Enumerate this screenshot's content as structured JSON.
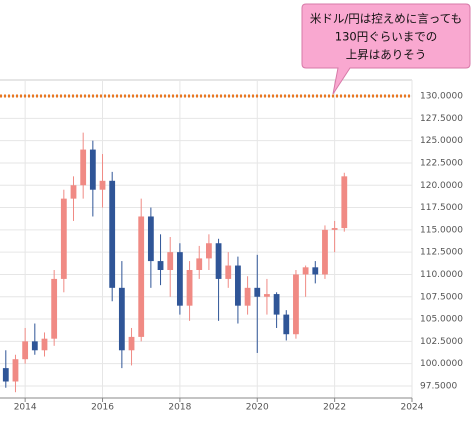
{
  "chart_data": {
    "type": "candlestick",
    "annotation": [
      "米ドル/円は控えめに言っても",
      "130円ぐらいまでの",
      "上昇はありそう"
    ],
    "reference_line": {
      "value": 130,
      "color": "#e87722"
    },
    "up_color": "#f08a84",
    "down_color": "#2f5597",
    "x": [
      2013.5,
      2013.75,
      2014,
      2014.25,
      2014.5,
      2014.75,
      2015,
      2015.25,
      2015.5,
      2015.75,
      2016,
      2016.25,
      2016.5,
      2016.75,
      2017,
      2017.25,
      2017.5,
      2017.75,
      2018,
      2018.25,
      2018.5,
      2018.75,
      2019,
      2019.25,
      2019.5,
      2019.75,
      2020,
      2020.25,
      2020.5,
      2020.75,
      2021,
      2021.25,
      2021.5,
      2021.75,
      2022,
      2022.25
    ],
    "open": [
      99.5,
      98.0,
      100.5,
      102.5,
      101.5,
      102.8,
      109.5,
      118.5,
      120,
      124,
      119.5,
      120.5,
      108.5,
      101.5,
      103,
      116.5,
      111.5,
      110.5,
      112.5,
      106.5,
      110.5,
      111.8,
      113.5,
      109.5,
      111,
      106.5,
      108.5,
      107.5,
      107.8,
      105.5,
      103.3,
      110,
      110.8,
      110,
      115,
      115.2
    ],
    "high": [
      101.5,
      101,
      104,
      104.5,
      103.5,
      110.5,
      119.5,
      121,
      125.9,
      125,
      123.5,
      121.5,
      111.5,
      104,
      118.5,
      117.5,
      114.5,
      114.2,
      113.5,
      111.5,
      113.2,
      114.5,
      114,
      112.5,
      112,
      109.8,
      112.2,
      109.5,
      108,
      106,
      110.5,
      111,
      111.5,
      115.5,
      116,
      121.4
    ],
    "low": [
      97.3,
      96.8,
      100,
      101,
      100.8,
      102,
      108,
      116,
      118.5,
      116.5,
      117.5,
      107,
      99.5,
      99.8,
      102.5,
      108.5,
      108.8,
      107.5,
      105.5,
      104.8,
      109.5,
      110.5,
      104.8,
      108.5,
      104.5,
      105.5,
      101.2,
      105.5,
      104,
      102.6,
      102.8,
      107.5,
      109,
      109.5,
      112.5,
      114.8
    ],
    "close": [
      98.0,
      100.5,
      102.5,
      101.5,
      102.8,
      109.5,
      118.5,
      120,
      124,
      119.5,
      120.5,
      108.5,
      101.5,
      103,
      116.5,
      111.5,
      110.5,
      112.5,
      106.5,
      110.5,
      111.8,
      113.5,
      109.5,
      111,
      106.5,
      108.5,
      107.5,
      107.8,
      105.5,
      103.3,
      110,
      110.8,
      110,
      115,
      115.2,
      121
    ],
    "xlim": [
      2013.35,
      2024
    ],
    "xticks": [
      2014,
      2016,
      2018,
      2020,
      2022,
      2024
    ],
    "ylim": [
      96.15,
      131.8
    ],
    "yticks": [
      {
        "value": 97.5,
        "label": "97.5000"
      },
      {
        "value": 100,
        "label": "100.0000"
      },
      {
        "value": 102.5,
        "label": "102.5000"
      },
      {
        "value": 105,
        "label": "105.0000"
      },
      {
        "value": 107.5,
        "label": "107.5000"
      },
      {
        "value": 110,
        "label": "110.0000"
      },
      {
        "value": 112.5,
        "label": "112.5000"
      },
      {
        "value": 115,
        "label": "115.0000"
      },
      {
        "value": 117.5,
        "label": "117.5000"
      },
      {
        "value": 120,
        "label": "120.0000"
      },
      {
        "value": 122.5,
        "label": "122.5000"
      },
      {
        "value": 125,
        "label": "125.0000"
      },
      {
        "value": 127.5,
        "label": "127.5000"
      },
      {
        "value": 130,
        "label": "130.0000"
      }
    ],
    "grid": true
  }
}
